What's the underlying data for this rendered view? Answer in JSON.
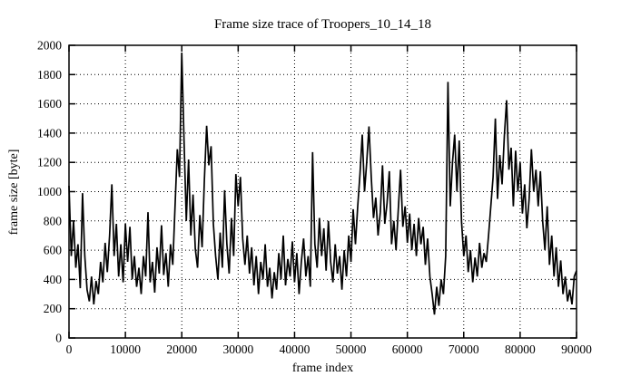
{
  "figure": {
    "title": "Frame size trace of Troopers_10_14_18",
    "xlabel": "frame index",
    "ylabel": "frame size [byte]"
  },
  "chart_data": {
    "type": "line",
    "title": "Frame size trace of Troopers_10_14_18",
    "xlabel": "frame index",
    "ylabel": "frame size [byte]",
    "xlim": [
      0,
      90000
    ],
    "ylim": [
      0,
      2000
    ],
    "xticks": [
      0,
      10000,
      20000,
      30000,
      40000,
      50000,
      60000,
      70000,
      80000,
      90000
    ],
    "yticks": [
      0,
      200,
      400,
      600,
      800,
      1000,
      1200,
      1400,
      1600,
      1800,
      2000
    ],
    "grid": "dotted",
    "legend_position": "none",
    "line_color": "#000000",
    "background_color": "#ffffff",
    "series": [
      {
        "name": "frame size",
        "x_start": 0,
        "x_step": 400,
        "values": [
          1040,
          560,
          800,
          480,
          640,
          340,
          990,
          560,
          330,
          250,
          420,
          230,
          390,
          300,
          520,
          380,
          650,
          450,
          700,
          1050,
          560,
          780,
          420,
          640,
          380,
          780,
          520,
          760,
          400,
          560,
          350,
          480,
          300,
          560,
          420,
          860,
          380,
          520,
          310,
          620,
          440,
          770,
          430,
          580,
          350,
          640,
          500,
          900,
          1290,
          1100,
          1950,
          1350,
          800,
          1220,
          700,
          980,
          610,
          480,
          840,
          620,
          1080,
          1450,
          1180,
          1310,
          780,
          560,
          400,
          720,
          480,
          1010,
          640,
          440,
          820,
          560,
          1120,
          900,
          1100,
          680,
          500,
          700,
          440,
          620,
          360,
          560,
          300,
          520,
          400,
          640,
          350,
          480,
          270,
          450,
          330,
          580,
          400,
          700,
          360,
          540,
          420,
          660,
          380,
          580,
          300,
          520,
          680,
          420,
          560,
          350,
          1270,
          640,
          480,
          820,
          560,
          750,
          460,
          800,
          520,
          380,
          640,
          440,
          560,
          330,
          600,
          420,
          700,
          520,
          880,
          640,
          900,
          1120,
          1390,
          1000,
          1200,
          1445,
          1100,
          820,
          960,
          700,
          860,
          1180,
          780,
          920,
          1140,
          640,
          800,
          600,
          880,
          1150,
          760,
          900,
          650,
          850,
          600,
          780,
          560,
          820,
          640,
          760,
          500,
          680,
          420,
          300,
          160,
          350,
          220,
          400,
          300,
          560,
          1750,
          900,
          1200,
          1390,
          1000,
          1350,
          800,
          560,
          700,
          450,
          600,
          380,
          550,
          420,
          650,
          480,
          580,
          520,
          700,
          900,
          1100,
          1500,
          950,
          1250,
          1050,
          1380,
          1625,
          1150,
          1300,
          900,
          1280,
          1000,
          1200,
          850,
          1050,
          750,
          950,
          1290,
          1000,
          1150,
          900,
          1140,
          800,
          600,
          900,
          500,
          700,
          420,
          620,
          350,
          530,
          300,
          420,
          250,
          330,
          230,
          420,
          460
        ]
      }
    ]
  }
}
